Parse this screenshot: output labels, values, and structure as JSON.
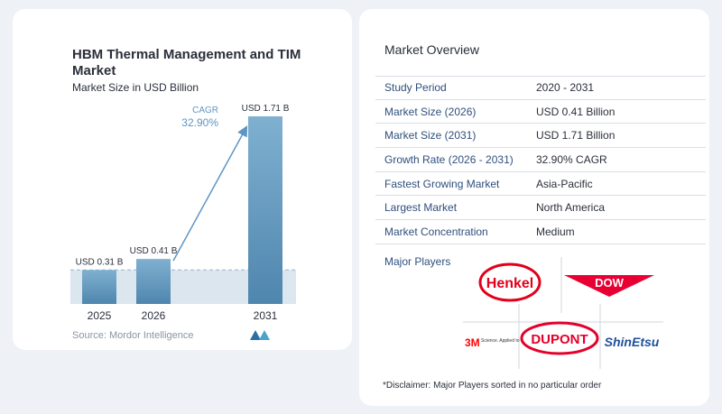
{
  "chart_data": {
    "type": "bar",
    "title": "HBM Thermal Management and TIM Market",
    "subtitle": "Market Size in USD Billion",
    "categories": [
      "2025",
      "2026",
      "2031"
    ],
    "values": [
      0.31,
      0.41,
      1.71
    ],
    "value_labels": [
      "USD 0.31 B",
      "USD 0.41 B",
      "USD 1.71 B"
    ],
    "cagr_label": "CAGR",
    "cagr_value": "32.90%",
    "ylim": [
      0,
      1.71
    ],
    "grid": false,
    "colors": {
      "bar_top": "#7fb0d0",
      "bar_bottom": "#4f86ae",
      "baseline_band": "#dce6ef",
      "arrow": "#5f95c2"
    }
  },
  "source": "Source:  Mordor Intelligence",
  "overview": {
    "title": "Market Overview",
    "rows": [
      {
        "label": "Study Period",
        "value": "2020 - 2031"
      },
      {
        "label": "Market Size (2026)",
        "value": "USD 0.41 Billion"
      },
      {
        "label": "Market Size (2031)",
        "value": "USD 1.71 Billion"
      },
      {
        "label": "Growth Rate (2026 - 2031)",
        "value": "32.90% CAGR"
      },
      {
        "label": "Fastest Growing Market",
        "value": "Asia-Pacific"
      },
      {
        "label": "Largest Market",
        "value": "North America"
      },
      {
        "label": "Market Concentration",
        "value": "Medium"
      }
    ]
  },
  "players": {
    "title": "Major Players",
    "logos": [
      {
        "name": "Henkel",
        "text": "Henkel",
        "color": "#e2001a"
      },
      {
        "name": "Dow",
        "text": "DOW",
        "color": "#e80033"
      },
      {
        "name": "3M",
        "text": "3M",
        "tagline": "Science. Applied to Life.",
        "color": "#ff0000"
      },
      {
        "name": "DuPont",
        "text": "DUPONT",
        "color": "#e4002b"
      },
      {
        "name": "Shin-Etsu",
        "text": "ShinEtsu",
        "color": "#1d4f9c"
      }
    ]
  },
  "disclaimer": "*Disclaimer: Major Players sorted in no particular order"
}
